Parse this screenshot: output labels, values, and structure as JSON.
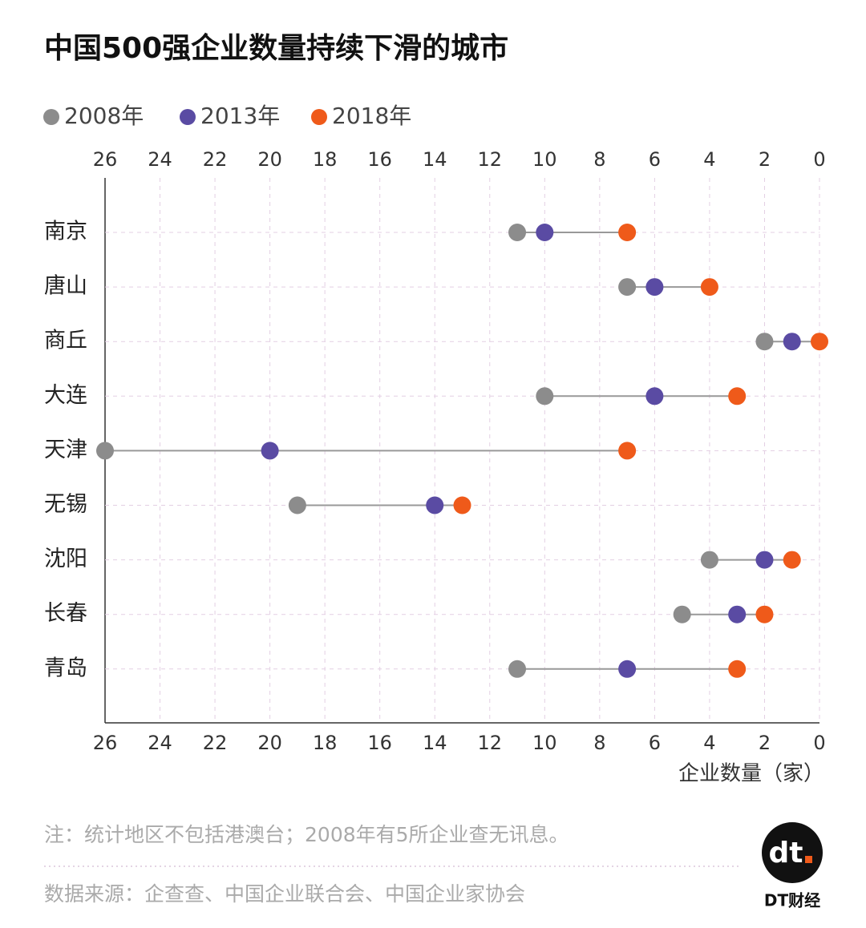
{
  "chart_data": {
    "type": "dumbbell",
    "title": "中国500强企业数量持续下滑的城市",
    "categories": [
      "南京",
      "唐山",
      "商丘",
      "大连",
      "天津",
      "无锡",
      "沈阳",
      "长春",
      "青岛"
    ],
    "series": [
      {
        "name": "2008年",
        "color": "#8c8c8c",
        "values": [
          11,
          7,
          2,
          10,
          26,
          19,
          4,
          5,
          11
        ]
      },
      {
        "name": "2013年",
        "color": "#5a4ba3",
        "values": [
          10,
          6,
          1,
          6,
          20,
          14,
          2,
          3,
          7
        ]
      },
      {
        "name": "2018年",
        "color": "#ef5a1a",
        "values": [
          7,
          4,
          0,
          3,
          7,
          13,
          1,
          2,
          3
        ]
      }
    ],
    "xlim": [
      26,
      0
    ],
    "xticks": [
      26,
      24,
      22,
      20,
      18,
      16,
      14,
      12,
      10,
      8,
      6,
      4,
      2,
      0
    ],
    "x_label": "企业数量（家）",
    "grid": true,
    "note": "注：统计地区不包括港澳台；2008年有5所企业查无讯息。",
    "source": "数据来源：企查查、中国企业联合会、中国企业家协会",
    "brand": "DT财经"
  }
}
